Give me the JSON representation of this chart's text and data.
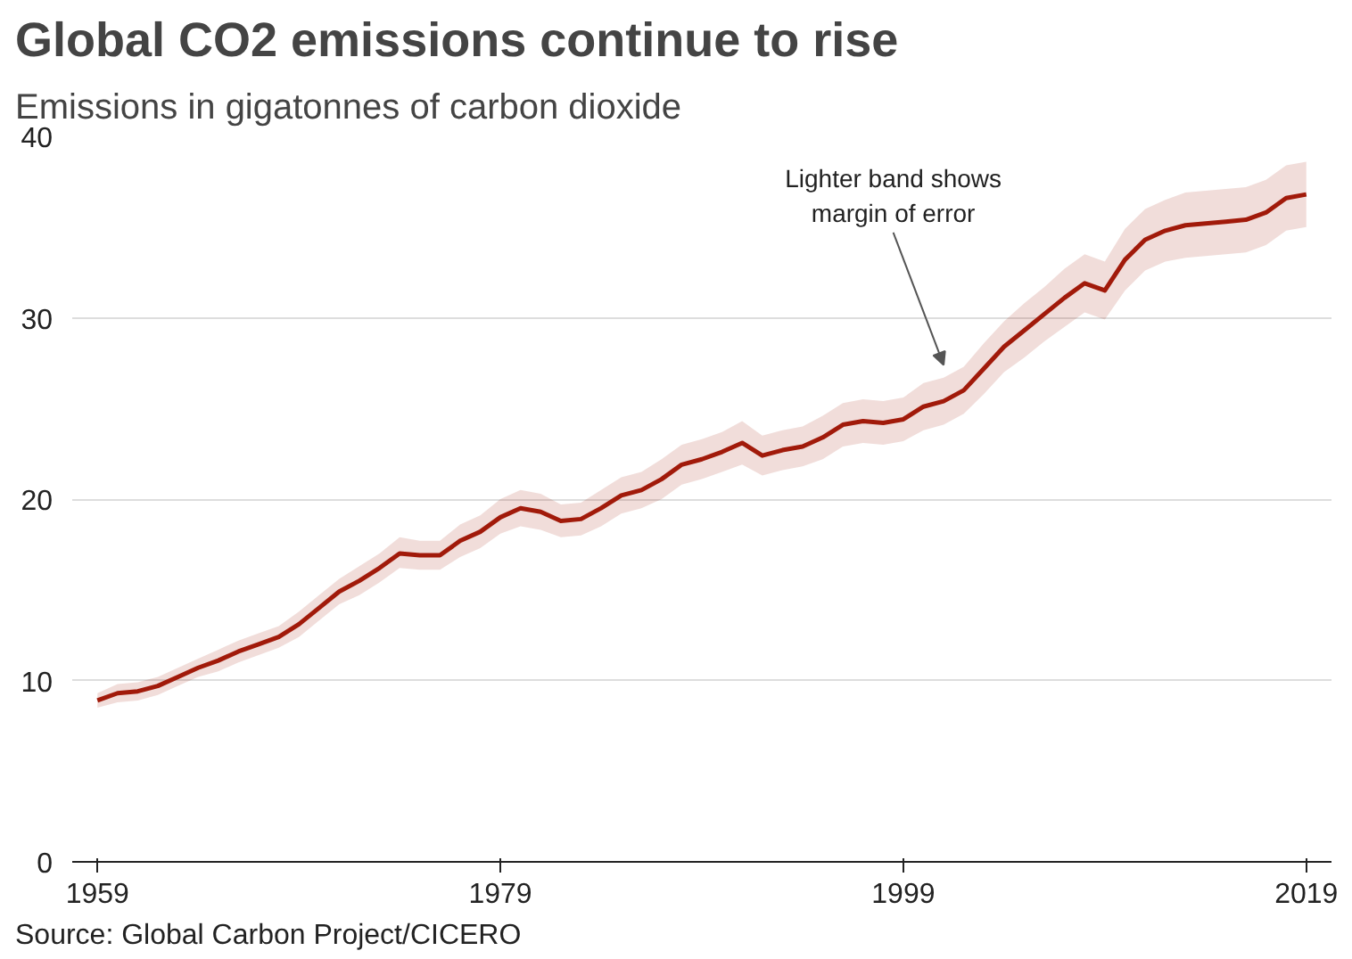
{
  "chart_data": {
    "type": "line",
    "title": "Global CO2 emissions continue to rise",
    "subtitle": "Emissions in gigatonnes of carbon dioxide",
    "x": [
      1959,
      1960,
      1961,
      1962,
      1963,
      1964,
      1965,
      1966,
      1967,
      1968,
      1969,
      1970,
      1971,
      1972,
      1973,
      1974,
      1975,
      1976,
      1977,
      1978,
      1979,
      1980,
      1981,
      1982,
      1983,
      1984,
      1985,
      1986,
      1987,
      1988,
      1989,
      1990,
      1991,
      1992,
      1993,
      1994,
      1995,
      1996,
      1997,
      1998,
      1999,
      2000,
      2001,
      2002,
      2003,
      2004,
      2005,
      2006,
      2007,
      2008,
      2009,
      2010,
      2011,
      2012,
      2013,
      2014,
      2015,
      2016,
      2017,
      2018,
      2019
    ],
    "series": [
      {
        "color": "#a11a0a",
        "values": [
          8.9,
          9.3,
          9.4,
          9.7,
          10.2,
          10.7,
          11.1,
          11.6,
          12.0,
          12.4,
          13.1,
          14.0,
          14.9,
          15.5,
          16.2,
          17.0,
          16.9,
          16.9,
          17.7,
          18.2,
          19.0,
          19.5,
          19.3,
          18.8,
          18.9,
          19.5,
          20.2,
          20.5,
          21.1,
          21.9,
          22.2,
          22.6,
          23.1,
          22.4,
          22.7,
          22.9,
          23.4,
          24.1,
          24.3,
          24.2,
          24.4,
          25.1,
          25.4,
          26.0,
          27.2,
          28.4,
          29.3,
          30.2,
          31.1,
          31.9,
          31.5,
          33.2,
          34.3,
          34.8,
          35.1,
          35.2,
          35.3,
          35.4,
          35.8,
          36.6,
          36.8
        ],
        "lower": [
          8.5,
          8.8,
          8.9,
          9.2,
          9.7,
          10.2,
          10.5,
          11.0,
          11.4,
          11.8,
          12.4,
          13.3,
          14.2,
          14.7,
          15.4,
          16.2,
          16.1,
          16.1,
          16.8,
          17.3,
          18.1,
          18.5,
          18.3,
          17.9,
          18.0,
          18.5,
          19.2,
          19.5,
          20.0,
          20.8,
          21.1,
          21.5,
          21.9,
          21.3,
          21.6,
          21.8,
          22.2,
          22.9,
          23.1,
          23.0,
          23.2,
          23.8,
          24.1,
          24.7,
          25.8,
          27.0,
          27.8,
          28.7,
          29.5,
          30.3,
          29.9,
          31.5,
          32.6,
          33.1,
          33.3,
          33.4,
          33.5,
          33.6,
          34.0,
          34.8,
          35.0
        ],
        "upper": [
          9.3,
          9.8,
          9.9,
          10.2,
          10.7,
          11.2,
          11.7,
          12.2,
          12.6,
          13.0,
          13.8,
          14.7,
          15.6,
          16.3,
          17.0,
          17.9,
          17.7,
          17.7,
          18.6,
          19.1,
          20.0,
          20.5,
          20.3,
          19.7,
          19.8,
          20.5,
          21.2,
          21.5,
          22.2,
          23.0,
          23.3,
          23.7,
          24.3,
          23.5,
          23.8,
          24.0,
          24.6,
          25.3,
          25.5,
          25.4,
          25.6,
          26.4,
          26.7,
          27.3,
          28.6,
          29.8,
          30.8,
          31.7,
          32.7,
          33.5,
          33.1,
          34.9,
          36.0,
          36.5,
          36.9,
          37.0,
          37.1,
          37.2,
          37.6,
          38.4,
          38.6
        ]
      }
    ],
    "xlim": [
      1957.75,
      2020.25
    ],
    "xticks": [
      1959,
      1979,
      1999,
      2019
    ],
    "ylim": [
      0,
      40
    ],
    "yticks": [
      0,
      10,
      20,
      30,
      40
    ],
    "grid": "y",
    "line_style": "solid",
    "annotations": [
      {
        "text": "Lighter band shows\nmargin of error",
        "x": 2001,
        "y": 27
      },
      "Source: Global Carbon Project/CICERO"
    ]
  }
}
